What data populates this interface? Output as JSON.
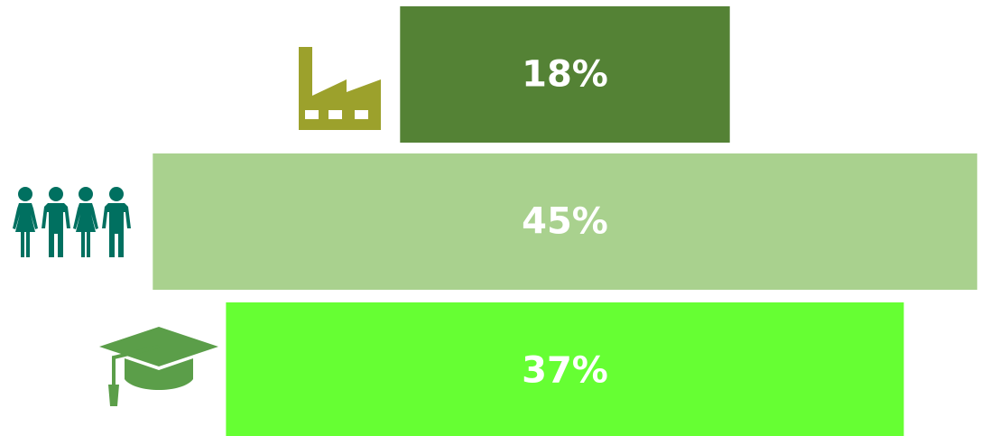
{
  "chart_data": {
    "type": "bar",
    "orientation": "horizontal",
    "values": [
      18,
      45,
      37
    ],
    "labels": [
      "18%",
      "45%",
      "37%"
    ],
    "icons": [
      "factory-icon",
      "people-icon",
      "graduation-cap-icon"
    ],
    "colors": [
      "#548235",
      "#A9D18E",
      "#66FF33"
    ],
    "icon_colors": [
      "#9CA12C",
      "#007060",
      "#5B9E49"
    ],
    "label_color": "#FFFFFF",
    "title": "",
    "xlabel": "",
    "ylabel": "",
    "grid": false,
    "legend": "none"
  }
}
